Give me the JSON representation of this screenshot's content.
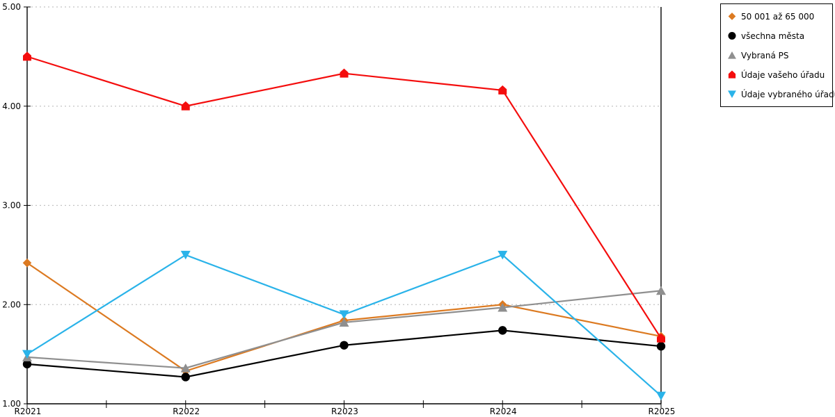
{
  "chart_data": {
    "type": "line",
    "title": "",
    "xlabel": "",
    "ylabel": "",
    "categories": [
      "R2021",
      "R2022",
      "R2023",
      "R2024",
      "R2025"
    ],
    "ylim": [
      1,
      5
    ],
    "ytick_labels": [
      "1.00",
      "2.00",
      "3.00",
      "4.00",
      "5.00"
    ],
    "grid": "horizontal-dotted",
    "legend_position": "top-right",
    "axis_color": "#000000",
    "gridline_color": "#c2c2c2",
    "series": [
      {
        "name": "50 001 až 65 000",
        "color": "#dc7a21",
        "marker": "diamond-icon",
        "values": [
          2.42,
          1.33,
          1.84,
          2.0,
          1.68
        ]
      },
      {
        "name": "všechna města",
        "color": "#000000",
        "marker": "circle-icon",
        "values": [
          1.4,
          1.27,
          1.59,
          1.74,
          1.58
        ]
      },
      {
        "name": "Vybraná PS",
        "color": "#8f8f8f",
        "marker": "triangle-up-icon",
        "values": [
          1.47,
          1.36,
          1.82,
          1.97,
          2.14
        ]
      },
      {
        "name": "Údaje vašeho úřadu",
        "color": "#f40d0d",
        "marker": "house-icon",
        "values": [
          4.5,
          4.0,
          4.33,
          4.16,
          1.66
        ]
      },
      {
        "name": "Údaje vybraného úřadu",
        "color": "#2ab3e9",
        "marker": "triangle-down-icon",
        "values": [
          1.5,
          2.5,
          1.9,
          2.5,
          1.08
        ]
      }
    ]
  }
}
